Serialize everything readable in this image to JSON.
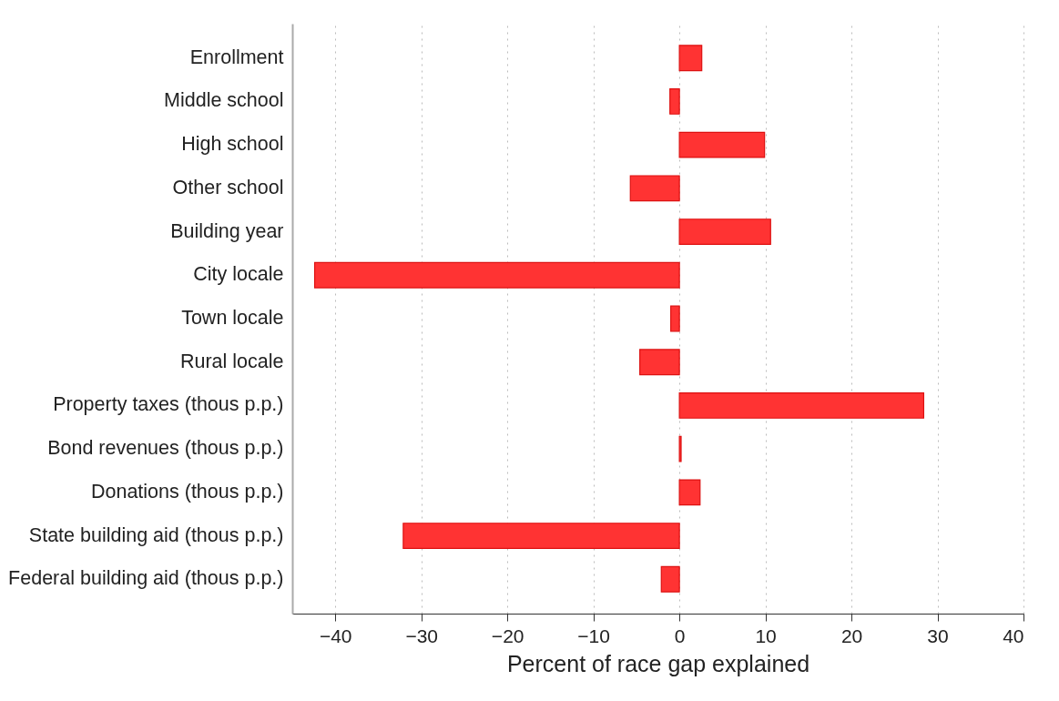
{
  "chart_data": {
    "type": "bar",
    "orientation": "horizontal",
    "xlabel": "Percent of race gap explained",
    "categories": [
      "Enrollment",
      "Middle school",
      "High school",
      "Other school",
      "Building year",
      "City locale",
      "Town locale",
      "Rural locale",
      "Property taxes (thous p.p.)",
      "Bond revenues (thous p.p.)",
      "Donations (thous p.p.)",
      "State building aid (thous p.p.)",
      "Federal building aid (thous p.p.)"
    ],
    "values": [
      2.6,
      -1.1,
      9.9,
      -5.7,
      10.6,
      -42.4,
      -1.0,
      -4.6,
      28.4,
      0.2,
      2.4,
      -32.1,
      -2.1
    ],
    "color": "#ff3333",
    "xlim": [
      -45,
      40
    ],
    "xticks": [
      -40,
      -30,
      -20,
      -10,
      0,
      10,
      20,
      30,
      40
    ],
    "grid": "x"
  }
}
